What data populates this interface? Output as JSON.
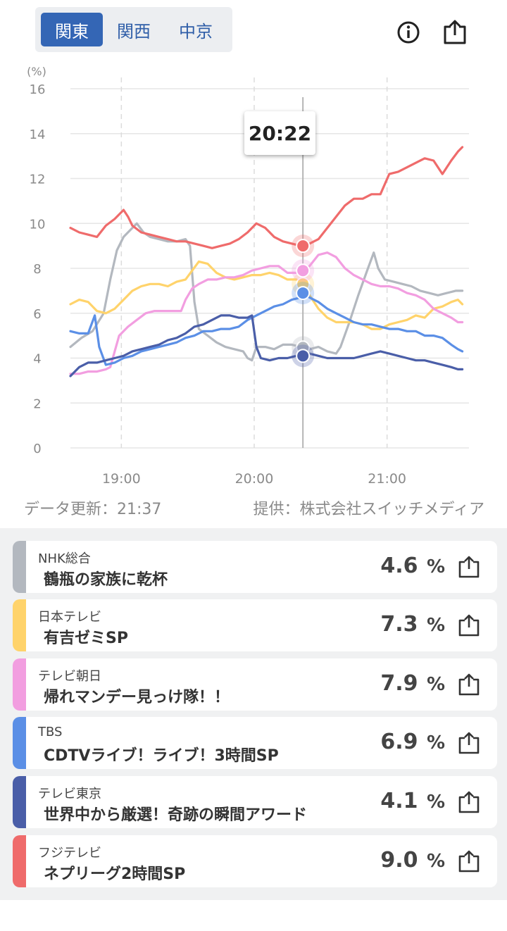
{
  "tabs": [
    {
      "label": "関東",
      "active": true
    },
    {
      "label": "関西",
      "active": false
    },
    {
      "label": "中京",
      "active": false
    }
  ],
  "header": {
    "info_icon": "info-icon",
    "share_icon": "share-icon"
  },
  "tooltip": {
    "time": "20:22"
  },
  "chart_data": {
    "type": "line",
    "ylabel": "(%)",
    "ylim": [
      0,
      16
    ],
    "yticks": [
      "0",
      "2",
      "4",
      "6",
      "8",
      "10",
      "12",
      "14",
      "16"
    ],
    "xticks": [
      "19:00",
      "20:00",
      "21:00"
    ],
    "x_start": "18:37",
    "x_end": "21:37",
    "cursor": "20:22",
    "grid": true,
    "legend": "none",
    "series": [
      {
        "name": "NHK総合",
        "color": "#b3b8bf",
        "points": [
          [
            0,
            4.5
          ],
          [
            5,
            4.9
          ],
          [
            10,
            5.2
          ],
          [
            15,
            6.0
          ],
          [
            18,
            7.5
          ],
          [
            21,
            8.8
          ],
          [
            24,
            9.4
          ],
          [
            27,
            9.7
          ],
          [
            30,
            10.0
          ],
          [
            33,
            9.6
          ],
          [
            36,
            9.4
          ],
          [
            40,
            9.3
          ],
          [
            44,
            9.2
          ],
          [
            48,
            9.2
          ],
          [
            52,
            9.3
          ],
          [
            54,
            9.0
          ],
          [
            56,
            6.5
          ],
          [
            58,
            5.3
          ],
          [
            62,
            5.0
          ],
          [
            66,
            4.7
          ],
          [
            70,
            4.5
          ],
          [
            74,
            4.4
          ],
          [
            78,
            4.3
          ],
          [
            80,
            4.0
          ],
          [
            82,
            3.9
          ],
          [
            84,
            4.5
          ],
          [
            88,
            4.5
          ],
          [
            92,
            4.4
          ],
          [
            96,
            4.6
          ],
          [
            100,
            4.6
          ],
          [
            104,
            4.5
          ],
          [
            108,
            4.4
          ],
          [
            112,
            4.5
          ],
          [
            116,
            4.3
          ],
          [
            120,
            4.2
          ],
          [
            122,
            4.5
          ],
          [
            126,
            5.6
          ],
          [
            130,
            6.8
          ],
          [
            134,
            7.9
          ],
          [
            137,
            8.7
          ],
          [
            139,
            8.0
          ],
          [
            142,
            7.5
          ],
          [
            146,
            7.4
          ],
          [
            150,
            7.3
          ],
          [
            154,
            7.2
          ],
          [
            158,
            7.0
          ],
          [
            162,
            6.9
          ],
          [
            166,
            6.8
          ],
          [
            170,
            6.9
          ],
          [
            174,
            7.0
          ],
          [
            177,
            7.0
          ]
        ]
      },
      {
        "name": "日本テレビ",
        "color": "#ffd36b",
        "points": [
          [
            0,
            6.4
          ],
          [
            4,
            6.6
          ],
          [
            8,
            6.5
          ],
          [
            12,
            6.1
          ],
          [
            16,
            6.0
          ],
          [
            20,
            6.2
          ],
          [
            24,
            6.6
          ],
          [
            28,
            7.0
          ],
          [
            32,
            7.2
          ],
          [
            36,
            7.3
          ],
          [
            40,
            7.3
          ],
          [
            44,
            7.2
          ],
          [
            48,
            7.4
          ],
          [
            52,
            7.5
          ],
          [
            55,
            7.9
          ],
          [
            58,
            8.3
          ],
          [
            62,
            8.2
          ],
          [
            66,
            7.8
          ],
          [
            70,
            7.6
          ],
          [
            74,
            7.5
          ],
          [
            78,
            7.6
          ],
          [
            82,
            7.7
          ],
          [
            86,
            7.7
          ],
          [
            90,
            7.8
          ],
          [
            94,
            7.7
          ],
          [
            98,
            7.5
          ],
          [
            102,
            7.5
          ],
          [
            105,
            7.3
          ],
          [
            108,
            6.8
          ],
          [
            112,
            6.2
          ],
          [
            116,
            5.8
          ],
          [
            120,
            5.6
          ],
          [
            124,
            5.6
          ],
          [
            128,
            5.6
          ],
          [
            132,
            5.5
          ],
          [
            136,
            5.3
          ],
          [
            140,
            5.3
          ],
          [
            144,
            5.5
          ],
          [
            148,
            5.6
          ],
          [
            152,
            5.7
          ],
          [
            156,
            5.9
          ],
          [
            160,
            5.8
          ],
          [
            164,
            6.2
          ],
          [
            168,
            6.3
          ],
          [
            172,
            6.5
          ],
          [
            175,
            6.6
          ],
          [
            177,
            6.4
          ]
        ]
      },
      {
        "name": "テレビ朝日",
        "color": "#f29ee0",
        "points": [
          [
            0,
            3.3
          ],
          [
            4,
            3.3
          ],
          [
            8,
            3.4
          ],
          [
            12,
            3.4
          ],
          [
            16,
            3.5
          ],
          [
            18,
            3.6
          ],
          [
            20,
            4.3
          ],
          [
            22,
            5.0
          ],
          [
            26,
            5.4
          ],
          [
            30,
            5.7
          ],
          [
            34,
            6.0
          ],
          [
            38,
            6.1
          ],
          [
            42,
            6.1
          ],
          [
            46,
            6.1
          ],
          [
            50,
            6.1
          ],
          [
            52,
            6.6
          ],
          [
            55,
            7.1
          ],
          [
            58,
            7.3
          ],
          [
            62,
            7.5
          ],
          [
            66,
            7.5
          ],
          [
            70,
            7.6
          ],
          [
            74,
            7.6
          ],
          [
            78,
            7.7
          ],
          [
            82,
            7.9
          ],
          [
            86,
            8.0
          ],
          [
            90,
            8.1
          ],
          [
            94,
            8.1
          ],
          [
            98,
            7.8
          ],
          [
            102,
            7.8
          ],
          [
            105,
            7.9
          ],
          [
            108,
            8.1
          ],
          [
            112,
            8.6
          ],
          [
            116,
            8.7
          ],
          [
            120,
            8.5
          ],
          [
            124,
            8.0
          ],
          [
            128,
            7.7
          ],
          [
            132,
            7.5
          ],
          [
            136,
            7.3
          ],
          [
            140,
            7.2
          ],
          [
            144,
            7.2
          ],
          [
            148,
            7.1
          ],
          [
            152,
            6.9
          ],
          [
            156,
            6.8
          ],
          [
            160,
            6.6
          ],
          [
            164,
            6.2
          ],
          [
            168,
            6.0
          ],
          [
            172,
            5.8
          ],
          [
            175,
            5.6
          ],
          [
            177,
            5.6
          ]
        ]
      },
      {
        "name": "TBS",
        "color": "#5b8fe6",
        "points": [
          [
            0,
            5.2
          ],
          [
            4,
            5.1
          ],
          [
            8,
            5.1
          ],
          [
            11,
            5.9
          ],
          [
            13,
            4.5
          ],
          [
            16,
            3.7
          ],
          [
            20,
            3.8
          ],
          [
            24,
            4.0
          ],
          [
            28,
            4.1
          ],
          [
            32,
            4.3
          ],
          [
            36,
            4.4
          ],
          [
            40,
            4.5
          ],
          [
            44,
            4.6
          ],
          [
            48,
            4.7
          ],
          [
            52,
            4.9
          ],
          [
            56,
            5.0
          ],
          [
            60,
            5.2
          ],
          [
            64,
            5.2
          ],
          [
            68,
            5.3
          ],
          [
            72,
            5.3
          ],
          [
            76,
            5.4
          ],
          [
            80,
            5.7
          ],
          [
            84,
            5.9
          ],
          [
            88,
            6.1
          ],
          [
            92,
            6.3
          ],
          [
            96,
            6.4
          ],
          [
            100,
            6.6
          ],
          [
            104,
            6.7
          ],
          [
            105,
            6.9
          ],
          [
            108,
            6.7
          ],
          [
            112,
            6.5
          ],
          [
            116,
            6.2
          ],
          [
            120,
            6.0
          ],
          [
            124,
            5.8
          ],
          [
            128,
            5.6
          ],
          [
            132,
            5.5
          ],
          [
            136,
            5.5
          ],
          [
            140,
            5.4
          ],
          [
            144,
            5.3
          ],
          [
            148,
            5.3
          ],
          [
            152,
            5.2
          ],
          [
            156,
            5.2
          ],
          [
            160,
            5.0
          ],
          [
            164,
            5.0
          ],
          [
            168,
            4.9
          ],
          [
            172,
            4.6
          ],
          [
            175,
            4.4
          ],
          [
            177,
            4.3
          ]
        ]
      },
      {
        "name": "テレビ東京",
        "color": "#4a5ea8",
        "points": [
          [
            0,
            3.2
          ],
          [
            4,
            3.6
          ],
          [
            8,
            3.8
          ],
          [
            12,
            3.8
          ],
          [
            16,
            3.9
          ],
          [
            20,
            4.0
          ],
          [
            24,
            4.1
          ],
          [
            28,
            4.3
          ],
          [
            32,
            4.4
          ],
          [
            36,
            4.5
          ],
          [
            40,
            4.6
          ],
          [
            44,
            4.8
          ],
          [
            48,
            4.9
          ],
          [
            52,
            5.1
          ],
          [
            56,
            5.4
          ],
          [
            60,
            5.5
          ],
          [
            64,
            5.7
          ],
          [
            68,
            5.9
          ],
          [
            72,
            5.9
          ],
          [
            76,
            5.8
          ],
          [
            80,
            5.8
          ],
          [
            82,
            5.9
          ],
          [
            84,
            4.5
          ],
          [
            86,
            4.0
          ],
          [
            90,
            3.9
          ],
          [
            94,
            4.0
          ],
          [
            98,
            4.0
          ],
          [
            102,
            4.1
          ],
          [
            105,
            4.1
          ],
          [
            108,
            4.2
          ],
          [
            112,
            4.1
          ],
          [
            116,
            4.0
          ],
          [
            120,
            4.0
          ],
          [
            124,
            4.0
          ],
          [
            128,
            4.0
          ],
          [
            132,
            4.1
          ],
          [
            136,
            4.2
          ],
          [
            140,
            4.3
          ],
          [
            144,
            4.2
          ],
          [
            148,
            4.1
          ],
          [
            152,
            4.0
          ],
          [
            156,
            3.9
          ],
          [
            160,
            3.9
          ],
          [
            164,
            3.8
          ],
          [
            168,
            3.7
          ],
          [
            172,
            3.6
          ],
          [
            175,
            3.5
          ],
          [
            177,
            3.5
          ]
        ]
      },
      {
        "name": "フジテレビ",
        "color": "#ef6b6b",
        "points": [
          [
            0,
            9.8
          ],
          [
            4,
            9.6
          ],
          [
            8,
            9.5
          ],
          [
            12,
            9.4
          ],
          [
            16,
            9.9
          ],
          [
            20,
            10.2
          ],
          [
            24,
            10.6
          ],
          [
            26,
            10.3
          ],
          [
            28,
            9.9
          ],
          [
            32,
            9.6
          ],
          [
            36,
            9.5
          ],
          [
            40,
            9.4
          ],
          [
            44,
            9.3
          ],
          [
            48,
            9.2
          ],
          [
            52,
            9.2
          ],
          [
            56,
            9.1
          ],
          [
            60,
            9.0
          ],
          [
            64,
            8.9
          ],
          [
            68,
            9.0
          ],
          [
            72,
            9.1
          ],
          [
            76,
            9.3
          ],
          [
            80,
            9.6
          ],
          [
            84,
            10.0
          ],
          [
            88,
            9.8
          ],
          [
            92,
            9.4
          ],
          [
            96,
            9.2
          ],
          [
            100,
            9.1
          ],
          [
            104,
            9.0
          ],
          [
            105,
            9.0
          ],
          [
            108,
            9.1
          ],
          [
            112,
            9.3
          ],
          [
            116,
            9.8
          ],
          [
            120,
            10.3
          ],
          [
            124,
            10.8
          ],
          [
            128,
            11.1
          ],
          [
            132,
            11.1
          ],
          [
            136,
            11.3
          ],
          [
            140,
            11.3
          ],
          [
            144,
            12.2
          ],
          [
            148,
            12.3
          ],
          [
            152,
            12.5
          ],
          [
            156,
            12.7
          ],
          [
            160,
            12.9
          ],
          [
            164,
            12.8
          ],
          [
            168,
            12.2
          ],
          [
            172,
            12.8
          ],
          [
            175,
            13.2
          ],
          [
            177,
            13.4
          ]
        ]
      }
    ]
  },
  "meta": {
    "updated": "データ更新：21:37",
    "provider": "提供：株式会社スイッチメディア"
  },
  "cards": [
    {
      "station": "NHK総合",
      "program": "鶴瓶の家族に乾杯",
      "rating": "4.6",
      "unit": "%",
      "color": "#b3b8bf"
    },
    {
      "station": "日本テレビ",
      "program": "有吉ゼミSP",
      "rating": "7.3",
      "unit": "%",
      "color": "#ffd36b"
    },
    {
      "station": "テレビ朝日",
      "program": "帰れマンデー見っけ隊！！",
      "rating": "7.9",
      "unit": "%",
      "color": "#f29ee0"
    },
    {
      "station": "TBS",
      "program": "CDTVライブ！ライブ！3時間SP",
      "rating": "6.9",
      "unit": "%",
      "color": "#5b8fe6"
    },
    {
      "station": "テレビ東京",
      "program": "世界中から厳選！奇跡の瞬間アワード",
      "rating": "4.1",
      "unit": "%",
      "color": "#4a5ea8"
    },
    {
      "station": "フジテレビ",
      "program": "ネプリーグ2時間SP",
      "rating": "9.0",
      "unit": "%",
      "color": "#ef6b6b"
    }
  ]
}
